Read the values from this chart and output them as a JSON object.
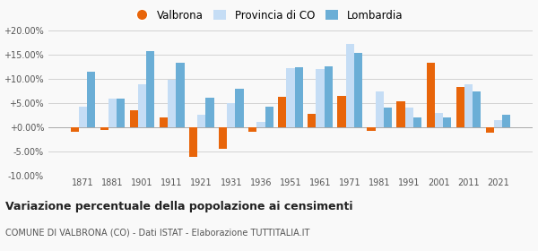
{
  "years": [
    1871,
    1881,
    1901,
    1911,
    1921,
    1931,
    1936,
    1951,
    1961,
    1971,
    1981,
    1991,
    2001,
    2011,
    2021
  ],
  "valbrona": [
    -1.0,
    -0.5,
    3.5,
    2.0,
    -6.2,
    -4.5,
    -1.0,
    6.2,
    2.7,
    6.5,
    -0.7,
    5.3,
    13.3,
    8.3,
    -1.2
  ],
  "provincia_co": [
    4.2,
    5.8,
    8.9,
    9.8,
    2.5,
    5.0,
    1.0,
    12.2,
    12.0,
    17.2,
    7.4,
    4.0,
    3.0,
    8.8,
    1.5
  ],
  "lombardia": [
    11.5,
    5.8,
    15.6,
    13.3,
    6.0,
    8.0,
    4.3,
    12.3,
    12.5,
    15.3,
    4.0,
    2.0,
    2.0,
    7.3,
    2.6
  ],
  "color_valbrona": "#e8650a",
  "color_provincia": "#c5ddf5",
  "color_lombardia": "#6baed6",
  "title": "Variazione percentuale della popolazione ai censimenti",
  "subtitle": "COMUNE DI VALBRONA (CO) - Dati ISTAT - Elaborazione TUTTITALIA.IT",
  "ylim": [
    -10.0,
    20.0
  ],
  "yticks": [
    -10.0,
    -5.0,
    0.0,
    5.0,
    10.0,
    15.0,
    20.0
  ],
  "legend_labels": [
    "Valbrona",
    "Provincia di CO",
    "Lombardia"
  ],
  "bg_color": "#f9f9f9"
}
